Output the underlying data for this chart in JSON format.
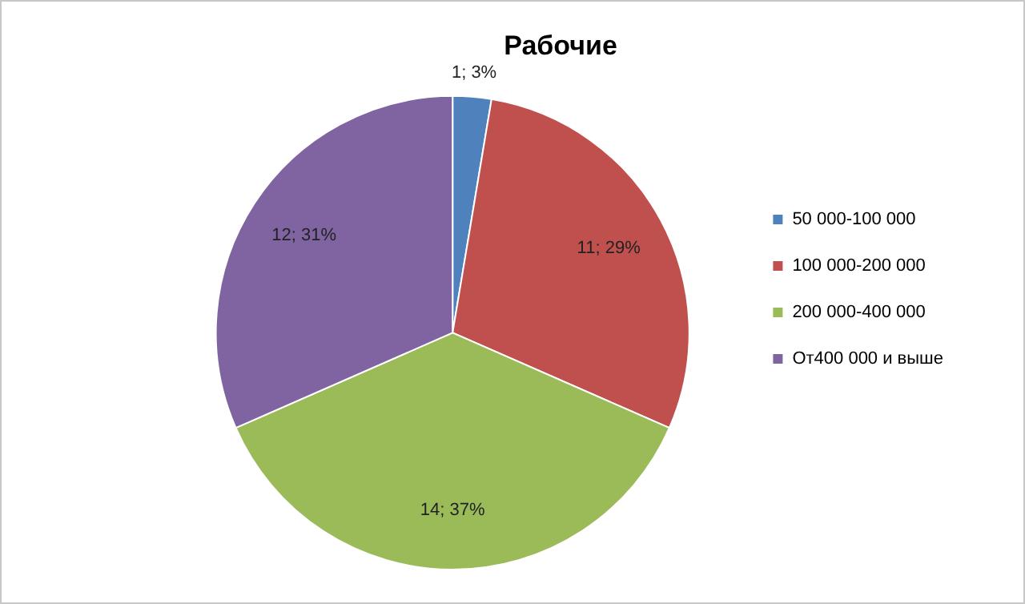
{
  "chart_data": {
    "type": "pie",
    "title": "Рабочие",
    "categories": [
      "50 000-100 000",
      "100 000-200 000",
      "200 000-400 000",
      "От400 000 и выше"
    ],
    "values": [
      1,
      11,
      14,
      12
    ],
    "colors": [
      "#4f81bd",
      "#c0504d",
      "#9bbb59",
      "#8064a2"
    ],
    "value_labels": [
      "1; 3%",
      "11; 29%",
      "14; 37%",
      "12; 31%"
    ],
    "legend": "right"
  }
}
